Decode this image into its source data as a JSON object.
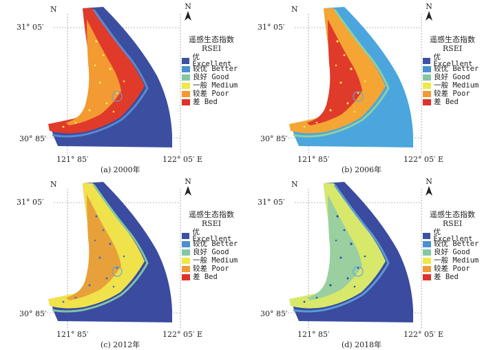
{
  "panels": [
    {
      "caption": "(a) 2000年"
    },
    {
      "caption": "(b) 2006年"
    },
    {
      "caption": "(c) 2012年"
    },
    {
      "caption": "(d) 2018年"
    }
  ],
  "labels": {
    "north": "N",
    "lat_top": "31° 05′",
    "lat_bottom": "30° 85′",
    "lon_left": "121° 85′",
    "lon_right": "122° 05′ E"
  },
  "legend": {
    "title": "遥感生态指数",
    "subtitle": "RSEI",
    "items": [
      {
        "label": "优 Excellent",
        "color": "#3d51a3"
      },
      {
        "label": "较优 Better",
        "color": "#4a8fcf"
      },
      {
        "label": "良好 Good",
        "color": "#86c7a3"
      },
      {
        "label": "一般 Medium",
        "color": "#eee84a"
      },
      {
        "label": "较差 Poor",
        "color": "#f19a35"
      },
      {
        "label": "差 Bed",
        "color": "#e0312a"
      }
    ]
  },
  "map_fills": [
    {
      "sea": "#3b4ea0",
      "land": "#e03a2a",
      "land2": "#f39a32",
      "strip": "#5a8ad0",
      "speck": "#f6e94a"
    },
    {
      "sea": "#4aa6dd",
      "land": "#f4a534",
      "land2": "#e03a2a",
      "strip": "#8fcfa2",
      "speck": "#f6e94a"
    },
    {
      "sea": "#3a4ba0",
      "land": "#f0e24a",
      "land2": "#e8a13a",
      "strip": "#7ec5a8",
      "speck": "#3d6fc0"
    },
    {
      "sea": "#3a4ba0",
      "land": "#d8e86a",
      "land2": "#9ad0a0",
      "strip": "#5a9bd4",
      "speck": "#2f4f9a"
    }
  ]
}
